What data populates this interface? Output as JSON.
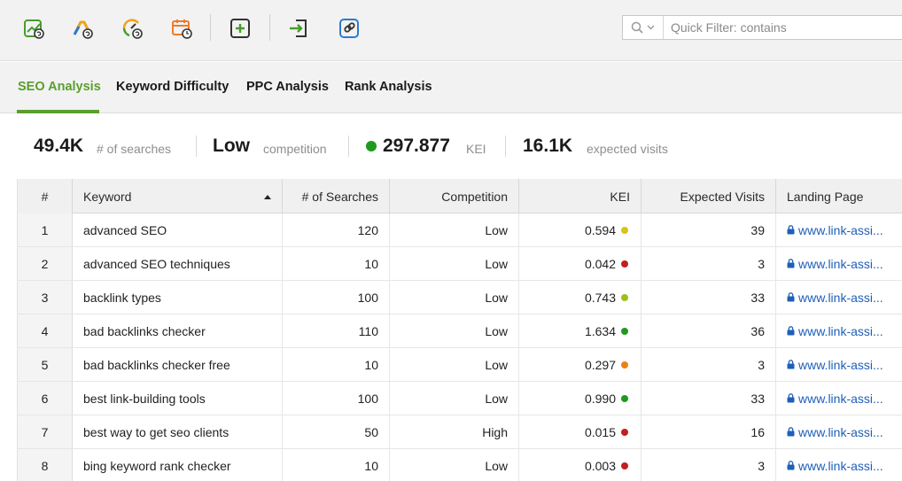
{
  "toolbar": {
    "icons": [
      {
        "name": "update-rankings-icon",
        "color": "#4a9a2c"
      },
      {
        "name": "update-adwords-icon",
        "color": "#f0a11b"
      },
      {
        "name": "update-kei-icon",
        "color": "#f0a11b"
      },
      {
        "name": "schedule-update-icon",
        "color": "#ef7b2a"
      },
      {
        "name": "add-keywords-icon",
        "color": "#4a9a2c"
      },
      {
        "name": "move-to-icon",
        "color": "#333333"
      },
      {
        "name": "link-icon",
        "color": "#2b7bd0"
      }
    ],
    "filter": {
      "placeholder": "Quick Filter: contains"
    }
  },
  "tabs": [
    {
      "label": "SEO Analysis",
      "active": true
    },
    {
      "label": "Keyword Difficulty",
      "active": false
    },
    {
      "label": "PPC Analysis",
      "active": false
    },
    {
      "label": "Rank Analysis",
      "active": false
    }
  ],
  "summary": {
    "searches": {
      "value": "49.4K",
      "label": "# of searches"
    },
    "competition": {
      "value": "Low",
      "label": "competition"
    },
    "kei": {
      "value": "297.877",
      "label": "KEI",
      "dot_color": "#1f9a1f"
    },
    "visits": {
      "value": "16.1K",
      "label": "expected visits"
    }
  },
  "table": {
    "columns": [
      "#",
      "Keyword",
      "# of Searches",
      "Competition",
      "KEI",
      "Expected Visits",
      "Landing Page"
    ],
    "rows": [
      {
        "n": "1",
        "keyword": "advanced SEO",
        "searches": "120",
        "competition": "Low",
        "kei": "0.594",
        "kei_color": "#d6c41c",
        "visits": "39",
        "landing": "www.link-assi..."
      },
      {
        "n": "2",
        "keyword": "advanced SEO techniques",
        "searches": "10",
        "competition": "Low",
        "kei": "0.042",
        "kei_color": "#c0201f",
        "visits": "3",
        "landing": "www.link-assi..."
      },
      {
        "n": "3",
        "keyword": "backlink types",
        "searches": "100",
        "competition": "Low",
        "kei": "0.743",
        "kei_color": "#9bc11e",
        "visits": "33",
        "landing": "www.link-assi..."
      },
      {
        "n": "4",
        "keyword": "bad backlinks checker",
        "searches": "110",
        "competition": "Low",
        "kei": "1.634",
        "kei_color": "#1f9a1f",
        "visits": "36",
        "landing": "www.link-assi..."
      },
      {
        "n": "5",
        "keyword": "bad backlinks checker free",
        "searches": "10",
        "competition": "Low",
        "kei": "0.297",
        "kei_color": "#e9821a",
        "visits": "3",
        "landing": "www.link-assi..."
      },
      {
        "n": "6",
        "keyword": "best link-building tools",
        "searches": "100",
        "competition": "Low",
        "kei": "0.990",
        "kei_color": "#1f9a1f",
        "visits": "33",
        "landing": "www.link-assi..."
      },
      {
        "n": "7",
        "keyword": "best way to get seo clients",
        "searches": "50",
        "competition": "High",
        "kei": "0.015",
        "kei_color": "#c0201f",
        "visits": "16",
        "landing": "www.link-assi..."
      },
      {
        "n": "8",
        "keyword": "bing keyword rank checker",
        "searches": "10",
        "competition": "Low",
        "kei": "0.003",
        "kei_color": "#c0201f",
        "visits": "3",
        "landing": "www.link-assi..."
      }
    ]
  }
}
